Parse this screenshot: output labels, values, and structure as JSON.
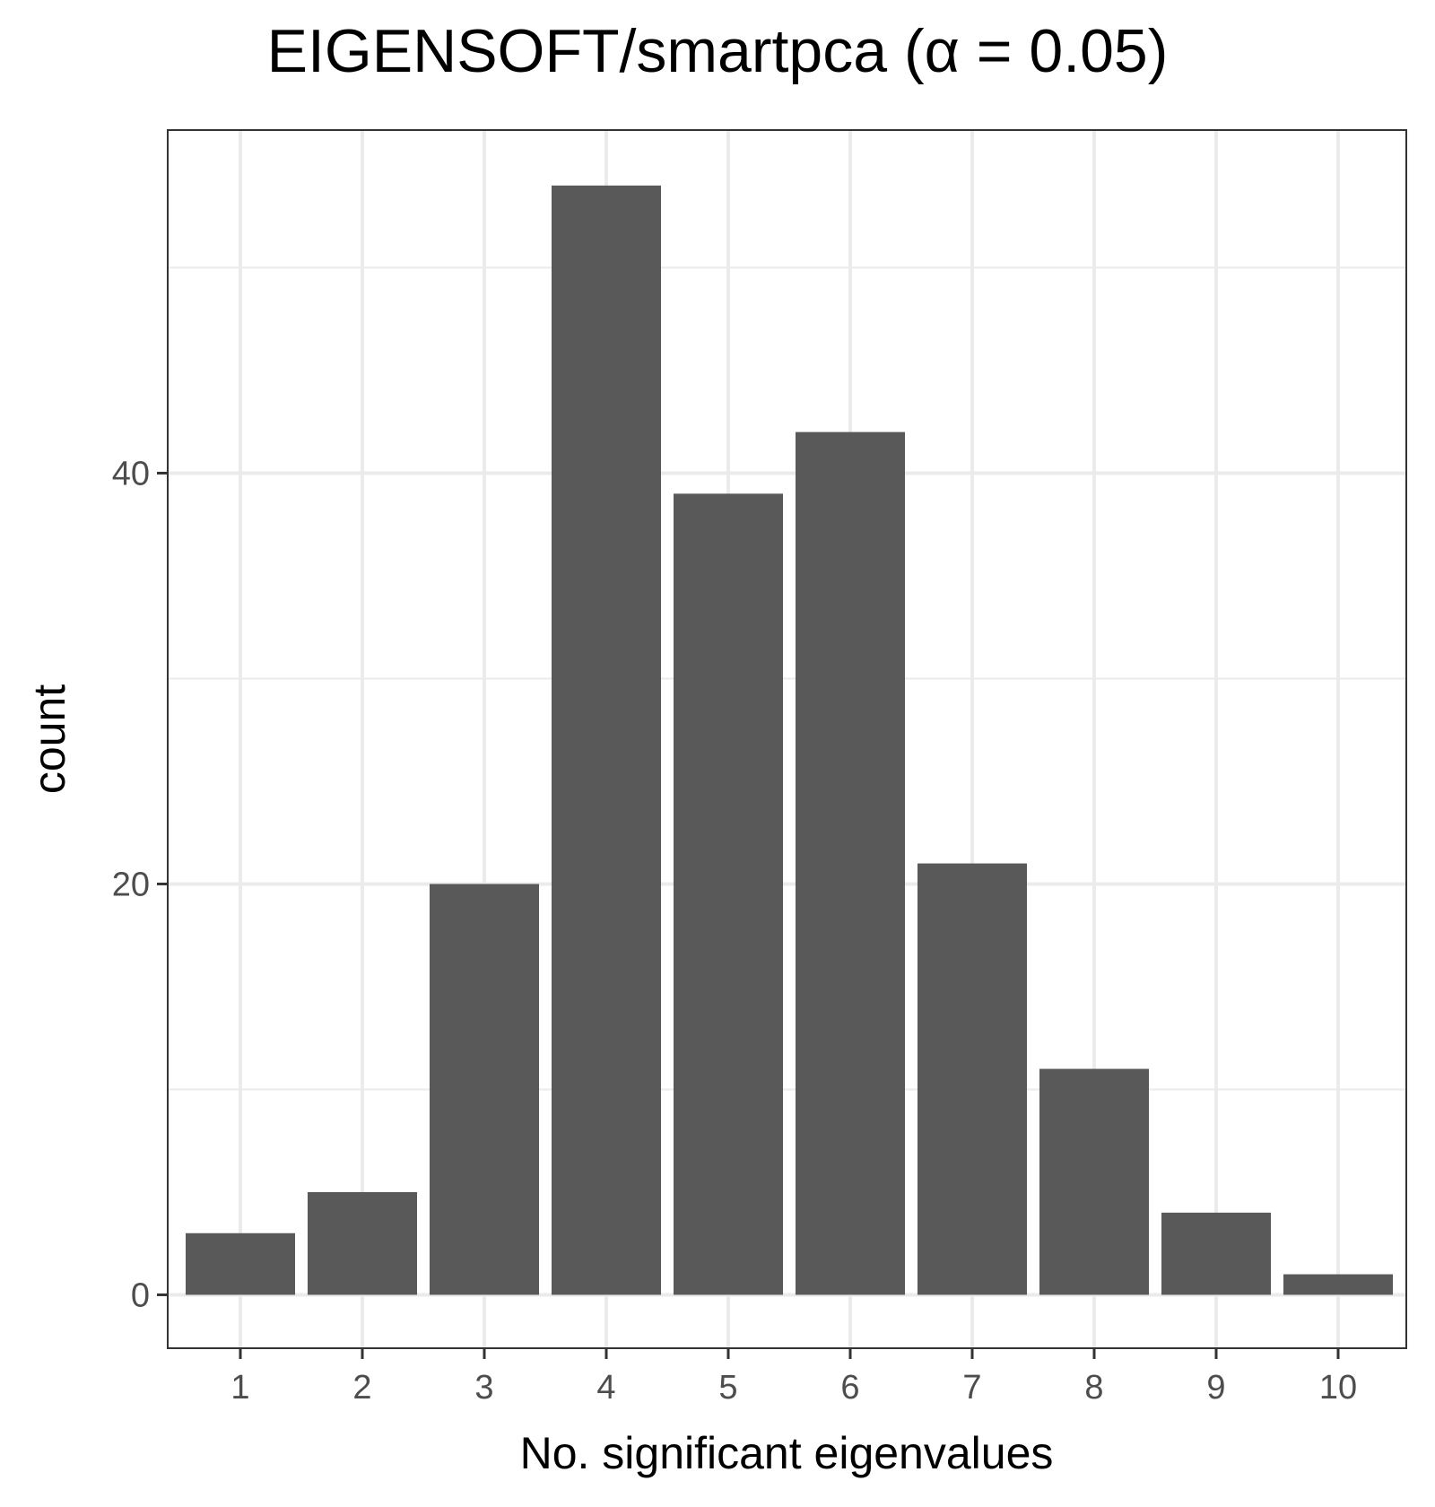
{
  "chart_data": {
    "type": "bar",
    "title": "EIGENSOFT/smartpca (α = 0.05)",
    "xlabel": "No. significant eigenvalues",
    "ylabel": "count",
    "categories": [
      "1",
      "2",
      "3",
      "4",
      "5",
      "6",
      "7",
      "8",
      "9",
      "10"
    ],
    "values": [
      3,
      5,
      20,
      54,
      39,
      42,
      21,
      11,
      4,
      1
    ],
    "y_ticks": [
      0,
      20,
      40
    ],
    "ylim": [
      -2.6,
      56.7
    ],
    "grid": true,
    "bar_color": "#595959",
    "grid_color": "#ebebeb",
    "panel_border_color": "#333333"
  }
}
